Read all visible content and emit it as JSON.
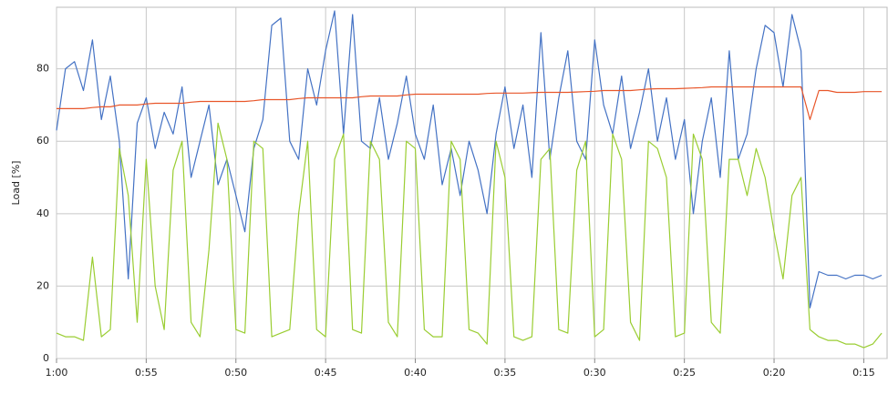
{
  "chart_data": {
    "type": "line",
    "y_label": "Load [%]",
    "x": [
      60,
      59.5,
      59,
      58.5,
      58,
      57.5,
      57,
      56.5,
      56,
      55.5,
      55,
      54.5,
      54,
      53.5,
      53,
      52.5,
      52,
      51.5,
      51,
      50.5,
      50,
      49.5,
      49,
      48.5,
      48,
      47.5,
      47,
      46.5,
      46,
      45.5,
      45,
      44.5,
      44,
      43.5,
      43,
      42.5,
      42,
      41.5,
      41,
      40.5,
      40,
      39.5,
      39,
      38.5,
      38,
      37.5,
      37,
      36.5,
      36,
      35.5,
      35,
      34.5,
      34,
      33.5,
      33,
      32.5,
      32,
      31.5,
      31,
      30.5,
      30,
      29.5,
      29,
      28.5,
      28,
      27.5,
      27,
      26.5,
      26,
      25.5,
      25,
      24.5,
      24,
      23.5,
      23,
      22.5,
      22,
      21.5,
      21,
      20.5,
      20,
      19.5,
      19,
      18.5,
      18,
      17.5,
      17,
      16.5,
      16,
      15.5,
      15,
      14.5,
      14
    ],
    "series": [
      {
        "color": "#4472c4",
        "values": [
          63,
          80,
          82,
          74,
          88,
          66,
          78,
          60,
          22,
          65,
          72,
          58,
          68,
          62,
          75,
          50,
          60,
          70,
          48,
          55,
          45,
          35,
          58,
          66,
          92,
          94,
          60,
          55,
          80,
          70,
          85,
          96,
          62,
          95,
          60,
          58,
          72,
          55,
          65,
          78,
          62,
          55,
          70,
          48,
          58,
          45,
          60,
          52,
          40,
          62,
          75,
          58,
          70,
          50,
          90,
          55,
          72,
          85,
          60,
          55,
          88,
          70,
          62,
          78,
          58,
          68,
          80,
          60,
          72,
          55,
          66,
          40,
          60,
          72,
          50,
          85,
          55,
          62,
          80,
          92,
          90,
          75,
          95,
          85,
          14,
          24,
          23,
          23,
          22,
          23,
          23,
          22,
          23
        ]
      },
      {
        "color": "#9acd32",
        "values": [
          7,
          6,
          6,
          5,
          28,
          6,
          8,
          58,
          45,
          10,
          55,
          20,
          8,
          52,
          60,
          10,
          6,
          30,
          65,
          55,
          8,
          7,
          60,
          58,
          6,
          7,
          8,
          40,
          60,
          8,
          6,
          55,
          62,
          8,
          7,
          60,
          55,
          10,
          6,
          60,
          58,
          8,
          6,
          6,
          60,
          55,
          8,
          7,
          4,
          60,
          50,
          6,
          5,
          6,
          55,
          58,
          8,
          7,
          52,
          60,
          6,
          8,
          62,
          55,
          10,
          5,
          60,
          58,
          50,
          6,
          7,
          62,
          55,
          10,
          7,
          55,
          55,
          45,
          58,
          50,
          35,
          22,
          45,
          50,
          8,
          6,
          5,
          5,
          4,
          4,
          3,
          4,
          7
        ]
      },
      {
        "color": "#e8562a",
        "values": [
          69,
          69,
          69,
          69,
          69.3,
          69.5,
          69.5,
          70,
          70,
          70,
          70.3,
          70.5,
          70.5,
          70.5,
          70.5,
          70.8,
          71,
          71,
          71,
          71,
          71,
          71,
          71.2,
          71.5,
          71.5,
          71.5,
          71.5,
          71.8,
          72,
          72,
          72,
          72,
          72,
          72,
          72.3,
          72.5,
          72.5,
          72.5,
          72.5,
          72.8,
          73,
          73,
          73,
          73,
          73,
          73,
          73,
          73,
          73.2,
          73.3,
          73.3,
          73.3,
          73.3,
          73.4,
          73.5,
          73.5,
          73.5,
          73.5,
          73.6,
          73.7,
          73.8,
          74,
          74,
          74,
          74,
          74.2,
          74.4,
          74.5,
          74.5,
          74.5,
          74.6,
          74.7,
          74.8,
          75,
          75,
          75,
          75,
          75,
          75,
          75,
          75,
          75,
          75,
          75,
          66,
          74,
          74,
          73.5,
          73.5,
          73.5,
          73.7,
          73.7,
          73.7
        ]
      }
    ],
    "xlim": [
      60,
      13.7
    ],
    "ylim": [
      0,
      97
    ],
    "xticks": [
      {
        "value": 60,
        "label": "1:00"
      },
      {
        "value": 55,
        "label": "0:55"
      },
      {
        "value": 50,
        "label": "0:50"
      },
      {
        "value": 45,
        "label": "0:45"
      },
      {
        "value": 40,
        "label": "0:40"
      },
      {
        "value": 35,
        "label": "0:35"
      },
      {
        "value": 30,
        "label": "0:30"
      },
      {
        "value": 25,
        "label": "0:25"
      },
      {
        "value": 20,
        "label": "0:20"
      },
      {
        "value": 15,
        "label": "0:15"
      }
    ],
    "yticks": [
      0,
      20,
      40,
      60,
      80
    ],
    "grid": true
  }
}
